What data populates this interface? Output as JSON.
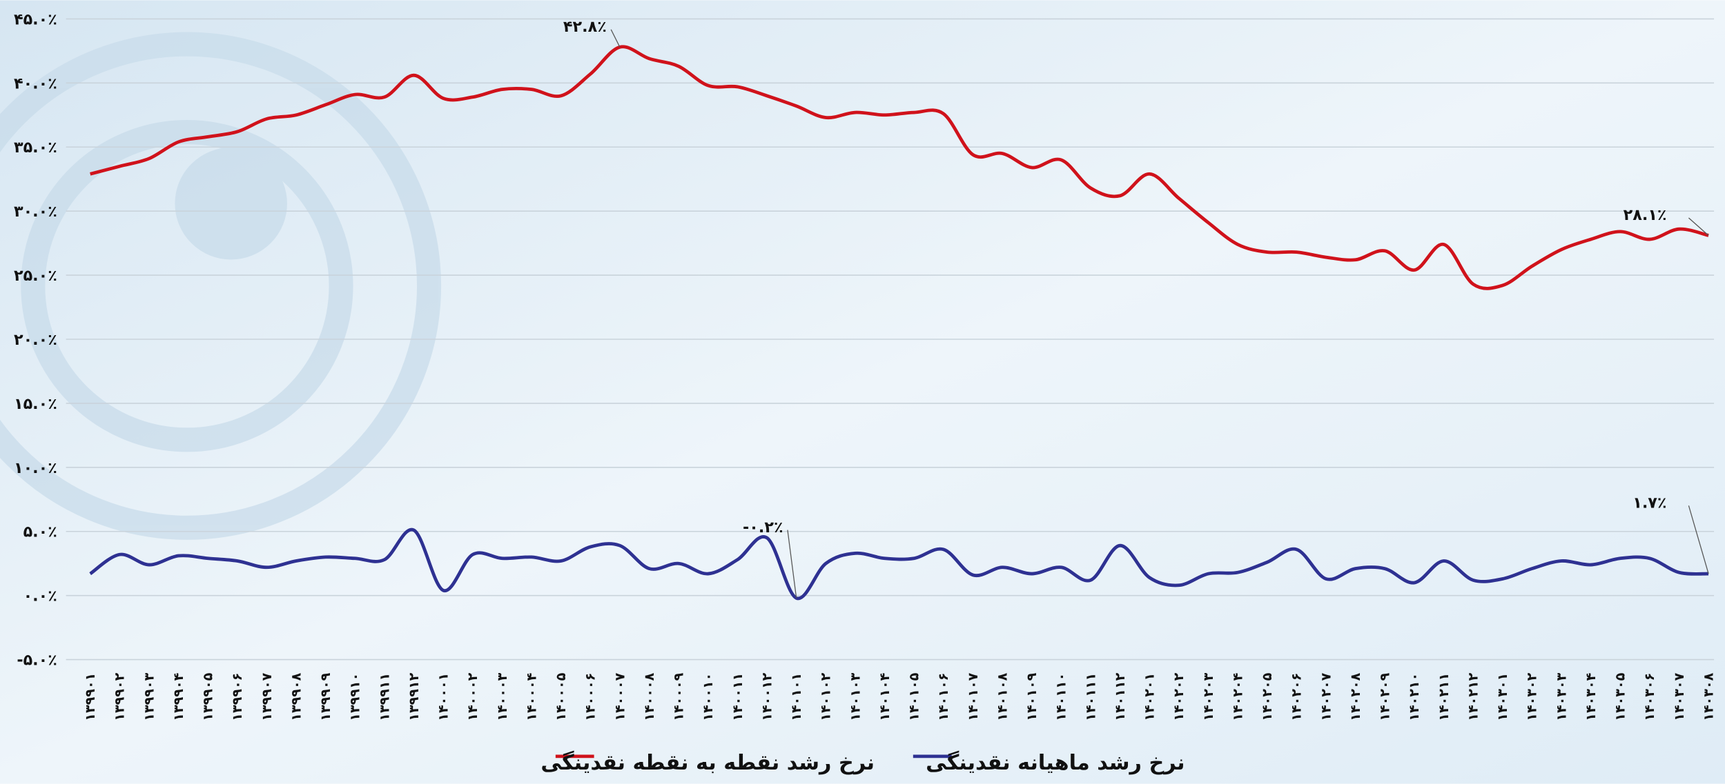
{
  "chart_data": {
    "type": "line",
    "categories": [
      "۱۳۹۹۰۱",
      "۱۳۹۹۰۲",
      "۱۳۹۹۰۳",
      "۱۳۹۹۰۴",
      "۱۳۹۹۰۵",
      "۱۳۹۹۰۶",
      "۱۳۹۹۰۷",
      "۱۳۹۹۰۸",
      "۱۳۹۹۰۹",
      "۱۳۹۹۱۰",
      "۱۳۹۹۱۱",
      "۱۳۹۹۱۲",
      "۱۴۰۰۰۱",
      "۱۴۰۰۰۲",
      "۱۴۰۰۰۳",
      "۱۴۰۰۰۴",
      "۱۴۰۰۰۵",
      "۱۴۰۰۰۶",
      "۱۴۰۰۰۷",
      "۱۴۰۰۰۸",
      "۱۴۰۰۰۹",
      "۱۴۰۰۱۰",
      "۱۴۰۰۱۱",
      "۱۴۰۰۱۲",
      "۱۴۰۱۰۱",
      "۱۴۰۱۰۲",
      "۱۴۰۱۰۳",
      "۱۴۰۱۰۴",
      "۱۴۰۱۰۵",
      "۱۴۰۱۰۶",
      "۱۴۰۱۰۷",
      "۱۴۰۱۰۸",
      "۱۴۰۱۰۹",
      "۱۴۰۱۱۰",
      "۱۴۰۱۱۱",
      "۱۴۰۱۱۲",
      "۱۴۰۲۰۱",
      "۱۴۰۲۰۲",
      "۱۴۰۲۰۳",
      "۱۴۰۲۰۴",
      "۱۴۰۲۰۵",
      "۱۴۰۲۰۶",
      "۱۴۰۲۰۷",
      "۱۴۰۲۰۸",
      "۱۴۰۲۰۹",
      "۱۴۰۲۱۰",
      "۱۴۰۲۱۱",
      "۱۴۰۲۱۲",
      "۱۴۰۳۰۱",
      "۱۴۰۳۰۲",
      "۱۴۰۳۰۳",
      "۱۴۰۳۰۴",
      "۱۴۰۳۰۵",
      "۱۴۰۳۰۶",
      "۱۴۰۳۰۷",
      "۱۴۰۳۰۸"
    ],
    "series": [
      {
        "name": "نرخ رشد نقطه به نقطه نقدینگی",
        "color": "#d0121b",
        "values": [
          32.9,
          33.5,
          34.1,
          35.4,
          35.8,
          36.2,
          37.2,
          37.5,
          38.3,
          39.1,
          38.9,
          40.6,
          38.8,
          38.9,
          39.5,
          39.5,
          39.0,
          40.7,
          42.8,
          41.9,
          41.3,
          39.8,
          39.7,
          39.0,
          38.2,
          37.3,
          37.7,
          37.5,
          37.7,
          37.6,
          34.4,
          34.5,
          33.4,
          34.0,
          31.8,
          31.2,
          32.9,
          31.0,
          29.1,
          27.4,
          26.8,
          26.8,
          26.4,
          26.2,
          26.9,
          25.4,
          27.4,
          24.3,
          24.2,
          25.7,
          27.0,
          27.8,
          28.4,
          27.8,
          28.6,
          28.1
        ],
        "value_labels": [
          null,
          null,
          null,
          null,
          null,
          null,
          null,
          null,
          null,
          null,
          null,
          null,
          null,
          null,
          null,
          null,
          null,
          null,
          "۴۲.۸٪",
          null,
          null,
          null,
          null,
          null,
          null,
          null,
          null,
          null,
          null,
          null,
          null,
          null,
          null,
          null,
          null,
          null,
          null,
          null,
          null,
          null,
          null,
          null,
          null,
          null,
          null,
          null,
          null,
          null,
          null,
          null,
          null,
          null,
          null,
          null,
          null,
          "۲۸.۱٪"
        ]
      },
      {
        "name": "نرخ رشد ماهیانه نقدینگی",
        "color": "#2e3192",
        "values": [
          1.7,
          3.2,
          2.4,
          3.1,
          2.9,
          2.7,
          2.2,
          2.7,
          3.0,
          2.9,
          2.8,
          5.1,
          0.4,
          3.2,
          2.9,
          3.0,
          2.7,
          3.8,
          3.9,
          2.1,
          2.5,
          1.7,
          2.8,
          4.5,
          -0.2,
          2.5,
          3.3,
          2.9,
          2.9,
          3.6,
          1.6,
          2.2,
          1.7,
          2.2,
          1.2,
          3.9,
          1.4,
          0.8,
          1.7,
          1.8,
          2.6,
          3.6,
          1.3,
          2.1,
          2.1,
          1.0,
          2.7,
          1.2,
          1.3,
          2.1,
          2.7,
          2.4,
          2.9,
          2.9,
          1.8,
          1.7
        ],
        "value_labels": [
          null,
          null,
          null,
          null,
          null,
          null,
          null,
          null,
          null,
          null,
          null,
          null,
          null,
          null,
          null,
          null,
          null,
          null,
          null,
          null,
          null,
          null,
          null,
          null,
          "-۰.۲٪",
          null,
          null,
          null,
          null,
          null,
          null,
          null,
          null,
          null,
          null,
          null,
          null,
          null,
          null,
          null,
          null,
          null,
          null,
          null,
          null,
          null,
          null,
          null,
          null,
          null,
          null,
          null,
          null,
          null,
          null,
          "۱.۷٪"
        ]
      }
    ],
    "ylim": [
      -5,
      45
    ],
    "yticks": [
      {
        "value": -5,
        "label": "-۵.۰٪"
      },
      {
        "value": 0,
        "label": "۰.۰٪"
      },
      {
        "value": 5,
        "label": "۵.۰٪"
      },
      {
        "value": 10,
        "label": "۱۰.۰٪"
      },
      {
        "value": 15,
        "label": "۱۵.۰٪"
      },
      {
        "value": 20,
        "label": "۲۰.۰٪"
      },
      {
        "value": 25,
        "label": "۲۵.۰٪"
      },
      {
        "value": 30,
        "label": "۳۰.۰٪"
      },
      {
        "value": 35,
        "label": "۳۵.۰٪"
      },
      {
        "value": 40,
        "label": "۴۰.۰٪"
      },
      {
        "value": 45,
        "label": "۴۵.۰٪"
      }
    ],
    "grid": true,
    "legend": "bottom"
  }
}
